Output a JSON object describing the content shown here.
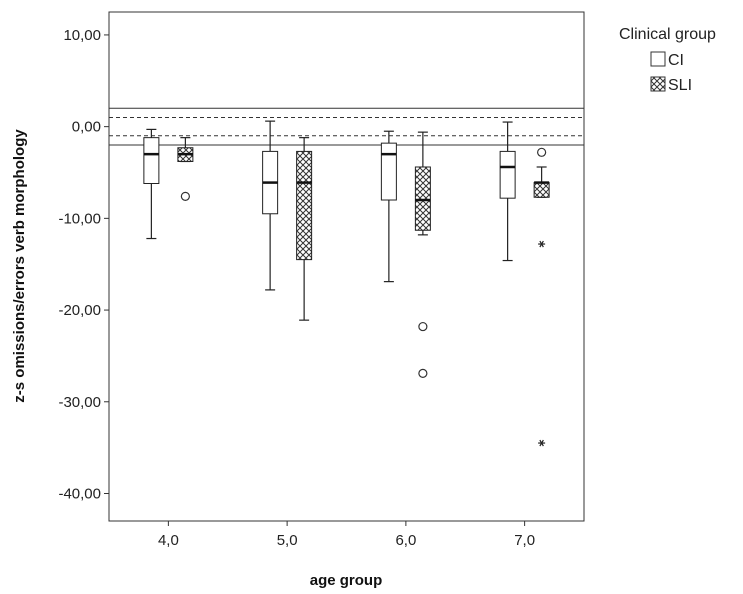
{
  "chart_data": {
    "type": "boxplot",
    "xlabel": "age group",
    "ylabel": "z-s omissions/errors verb morphology",
    "ylim": [
      -43.0,
      12.5
    ],
    "yticks": [
      "10,00",
      "0,00",
      "-10,00",
      "-20,00",
      "-30,00",
      "-40,00"
    ],
    "ytick_values": [
      10,
      0,
      -10,
      -20,
      -30,
      -40
    ],
    "categories": [
      "4,0",
      "5,0",
      "6,0",
      "7,0"
    ],
    "reference_lines": [
      {
        "y": 2.0,
        "style": "solid"
      },
      {
        "y": 1.0,
        "style": "dashed"
      },
      {
        "y": -1.0,
        "style": "dashed"
      },
      {
        "y": -2.0,
        "style": "solid"
      }
    ],
    "legend": {
      "title": "Clinical group",
      "placement": "right",
      "entries": [
        {
          "label": "CI",
          "pattern": "plain"
        },
        {
          "label": "SLI",
          "pattern": "crosshatch"
        }
      ]
    },
    "series": [
      {
        "name": "CI",
        "pattern": "plain",
        "boxes": [
          {
            "min": -12.2,
            "q1": -6.2,
            "median": -3.0,
            "q3": -1.2,
            "max": -0.3,
            "outliers": [],
            "extremes": []
          },
          {
            "min": -17.8,
            "q1": -9.5,
            "median": -6.1,
            "q3": -2.7,
            "max": 0.6,
            "outliers": [],
            "extremes": []
          },
          {
            "min": -16.9,
            "q1": -8.0,
            "median": -3.0,
            "q3": -1.8,
            "max": -0.5,
            "outliers": [],
            "extremes": []
          },
          {
            "min": -14.6,
            "q1": -7.8,
            "median": -4.4,
            "q3": -2.7,
            "max": 0.5,
            "outliers": [],
            "extremes": []
          }
        ]
      },
      {
        "name": "SLI",
        "pattern": "crosshatch",
        "boxes": [
          {
            "min": -3.8,
            "q1": -3.8,
            "median": -3.0,
            "q3": -2.3,
            "max": -1.2,
            "outliers": [
              -7.6
            ],
            "extremes": []
          },
          {
            "min": -21.1,
            "q1": -14.5,
            "median": -6.1,
            "q3": -2.7,
            "max": -1.2,
            "outliers": [],
            "extremes": []
          },
          {
            "min": -11.8,
            "q1": -11.3,
            "median": -8.0,
            "q3": -4.4,
            "max": -0.6,
            "outliers": [
              -21.8,
              -26.9
            ],
            "extremes": []
          },
          {
            "min": -7.7,
            "q1": -7.7,
            "median": -6.1,
            "q3": -6.1,
            "max": -4.4,
            "outliers": [
              -2.8
            ],
            "extremes": [
              -12.8,
              -34.5
            ]
          }
        ]
      }
    ]
  }
}
